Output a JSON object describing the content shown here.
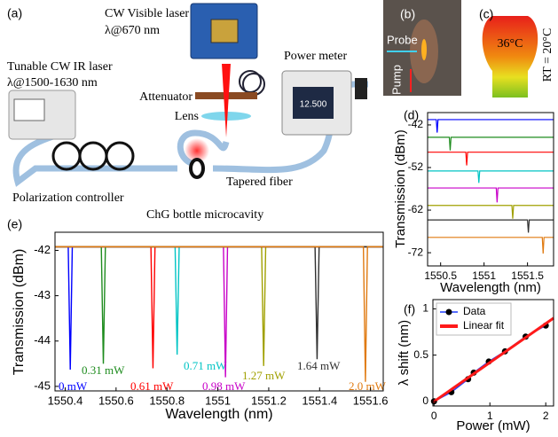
{
  "panel_labels": [
    "(a)",
    "(b)",
    "(c)",
    "(d)",
    "(e)",
    "(f)"
  ],
  "diagram": {
    "visible_laser": "CW Visible laser",
    "visible_wavelength": "λ@670 nm",
    "ir_laser": "Tunable CW IR laser",
    "ir_wavelength": "λ@1500-1630 nm",
    "attenuator": "Attenuator",
    "lens": "Lens",
    "power_meter": "Power meter",
    "meter_reading": "12.500",
    "polarization": "Polarization controller",
    "cavity": "ChG bottle microcavity",
    "taper": "Tapered fiber"
  },
  "photo": {
    "probe": "Probe",
    "pump": "Pump",
    "temperature": "36°C",
    "room_temperature": "RT = 20°C"
  },
  "chart_data": [
    {
      "type": "line",
      "xlabel": "Wavelength (nm)",
      "ylabel": "Transmission (dBm)",
      "xlim": [
        1550.36,
        1551.65
      ],
      "ylim": [
        -45.1,
        -41.6
      ],
      "xticks": [
        1550.4,
        1550.6,
        1550.8,
        1551,
        1551.2,
        1551.4,
        1551.6
      ],
      "yticks": [
        -42,
        -43,
        -44,
        -45
      ],
      "series": [
        {
          "name": "0 mW",
          "color": "#0000ff",
          "x": [
            1550.36,
            1550.412,
            1550.42,
            1550.428,
            1551.65
          ],
          "values": [
            -41.92,
            -41.92,
            -44.63,
            -41.92,
            -41.92
          ]
        },
        {
          "name": "0.31 mW",
          "color": "#1e8c1e",
          "x": [
            1550.36,
            1550.542,
            1550.55,
            1550.558,
            1551.65
          ],
          "values": [
            -41.92,
            -41.92,
            -44.5,
            -41.92,
            -41.92
          ]
        },
        {
          "name": "0.61 mW",
          "color": "#ff0000",
          "x": [
            1550.36,
            1550.737,
            1550.745,
            1550.753,
            1551.65
          ],
          "values": [
            -41.92,
            -41.92,
            -44.6,
            -41.92,
            -41.92
          ]
        },
        {
          "name": "0.71 mW",
          "color": "#00c4c4",
          "x": [
            1550.36,
            1550.832,
            1550.84,
            1550.848,
            1551.65
          ],
          "values": [
            -41.92,
            -41.92,
            -44.3,
            -41.92,
            -41.92
          ]
        },
        {
          "name": "0.98 mW",
          "color": "#c800c8",
          "x": [
            1550.36,
            1551.022,
            1551.03,
            1551.038,
            1551.65
          ],
          "values": [
            -41.92,
            -41.92,
            -44.8,
            -41.92,
            -41.92
          ]
        },
        {
          "name": "1.27 mW",
          "color": "#a0a000",
          "x": [
            1550.36,
            1551.172,
            1551.18,
            1551.188,
            1551.65
          ],
          "values": [
            -41.92,
            -41.92,
            -44.55,
            -41.92,
            -41.92
          ]
        },
        {
          "name": "1.64 mW",
          "color": "#303030",
          "x": [
            1550.36,
            1551.382,
            1551.39,
            1551.398,
            1551.65
          ],
          "values": [
            -41.92,
            -41.92,
            -44.4,
            -41.92,
            -41.92
          ]
        },
        {
          "name": "2.0 mW",
          "color": "#e07a10",
          "x": [
            1550.36,
            1551.572,
            1551.58,
            1551.588,
            1551.65
          ],
          "values": [
            -41.92,
            -41.92,
            -44.9,
            -41.92,
            -41.92
          ]
        }
      ]
    },
    {
      "type": "line",
      "xlabel": "Wavelength (nm)",
      "ylabel": "Transmission (dBm)",
      "xlim": [
        1550.35,
        1551.8
      ],
      "ylim": [
        -75.1,
        -39.1
      ],
      "xticks": [
        1550.5,
        1551,
        1551.5
      ],
      "yticks": [
        -42,
        -52,
        -62,
        -72
      ],
      "series": [
        {
          "color": "#0000ff",
          "x": [
            1550.35,
            1550.45,
            1550.46,
            1550.47,
            1551.8
          ],
          "values": [
            -40.75,
            -40.75,
            -43.8,
            -40.75,
            -40.75
          ]
        },
        {
          "color": "#1e8c1e",
          "x": [
            1550.35,
            1550.6,
            1550.61,
            1550.62,
            1551.8
          ],
          "values": [
            -44.9,
            -44.9,
            -48,
            -44.9,
            -44.9
          ]
        },
        {
          "color": "#ff0000",
          "x": [
            1550.35,
            1550.79,
            1550.8,
            1550.81,
            1551.8
          ],
          "values": [
            -48.4,
            -48.4,
            -51.5,
            -48.4,
            -48.4
          ]
        },
        {
          "color": "#00c4c4",
          "x": [
            1550.35,
            1550.93,
            1550.94,
            1550.95,
            1551.8
          ],
          "values": [
            -52.8,
            -52.8,
            -55.6,
            -52.8,
            -52.8
          ]
        },
        {
          "color": "#c800c8",
          "x": [
            1550.35,
            1551.14,
            1551.15,
            1551.16,
            1551.8
          ],
          "values": [
            -56.8,
            -56.8,
            -60.2,
            -56.8,
            -56.8
          ]
        },
        {
          "color": "#a0a000",
          "x": [
            1550.35,
            1551.32,
            1551.33,
            1551.34,
            1551.8
          ],
          "values": [
            -60.9,
            -60.9,
            -64,
            -60.9,
            -60.9
          ]
        },
        {
          "color": "#303030",
          "x": [
            1550.35,
            1551.5,
            1551.51,
            1551.52,
            1551.8
          ],
          "values": [
            -64.3,
            -64.3,
            -67.3,
            -64.3,
            -64.3
          ]
        },
        {
          "color": "#e07a10",
          "x": [
            1550.35,
            1551.67,
            1551.68,
            1551.69,
            1551.8
          ],
          "values": [
            -68.4,
            -68.4,
            -72.2,
            -68.4,
            -68.4
          ]
        }
      ]
    },
    {
      "type": "scatter",
      "xlabel": "Power (mW)",
      "ylabel": "λ shift (nm)",
      "xlim": [
        -0.02,
        2.14
      ],
      "ylim": [
        -0.05,
        1.1
      ],
      "xticks": [
        0,
        1,
        2
      ],
      "yticks": [
        0,
        0.5,
        1
      ],
      "legend": "upper left",
      "series": [
        {
          "name": "Data",
          "color": "#1f3fff",
          "marker": true,
          "marker_color": "#000000",
          "x": [
            0,
            0.31,
            0.61,
            0.71,
            0.98,
            1.27,
            1.64,
            2.0
          ],
          "values": [
            0,
            0.1,
            0.24,
            0.31,
            0.43,
            0.54,
            0.7,
            0.82
          ]
        },
        {
          "name": "Linear fit",
          "color": "#ff1a1a",
          "marker": false,
          "x": [
            -0.02,
            2.14
          ],
          "values": [
            -0.01,
            0.9
          ]
        }
      ]
    }
  ]
}
